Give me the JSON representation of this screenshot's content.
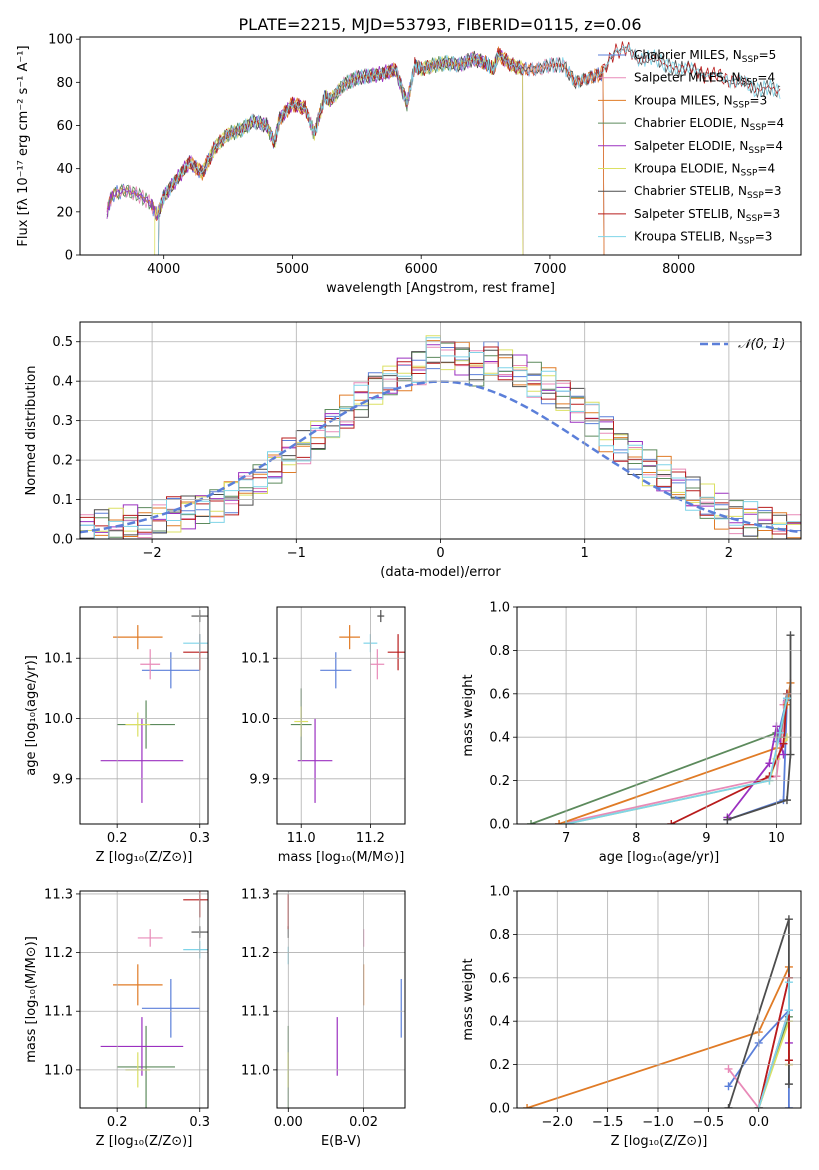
{
  "figure": {
    "title": "PLATE=2215, MJD=53793, FIBERID=0115, z=0.06"
  },
  "chart_data": [
    {
      "id": "spectrum",
      "type": "line",
      "xlabel": "wavelength [Angstrom, rest frame]",
      "ylabel": "Flux [fλ 10⁻¹⁷ erg cm⁻² s⁻¹ A⁻¹]",
      "xlim": [
        3350,
        8950
      ],
      "ylim": [
        0,
        101
      ],
      "xticks": [
        4000,
        5000,
        6000,
        7000,
        8000
      ],
      "yticks": [
        0,
        20,
        40,
        60,
        80,
        100
      ],
      "legend": "top-right",
      "grid": false,
      "x": [
        3560,
        3600,
        3700,
        3800,
        3900,
        3950,
        4000,
        4100,
        4200,
        4300,
        4400,
        4500,
        4600,
        4700,
        4800,
        4860,
        4900,
        5000,
        5100,
        5170,
        5250,
        5300,
        5400,
        5500,
        5600,
        5700,
        5800,
        5890,
        5950,
        6000,
        6100,
        6200,
        6300,
        6400,
        6500,
        6560,
        6600,
        6700,
        6800,
        6900,
        7000,
        7100,
        7200,
        7300,
        7400,
        7500,
        7600,
        7700,
        7800,
        7900,
        8000,
        8100,
        8200,
        8300,
        8400,
        8500,
        8600,
        8700,
        8800
      ],
      "y": [
        20,
        28,
        30,
        28,
        24,
        18,
        27,
        35,
        43,
        38,
        50,
        56,
        58,
        62,
        60,
        52,
        63,
        70,
        68,
        56,
        73,
        72,
        79,
        82,
        83,
        84,
        86,
        70,
        88,
        86,
        88,
        89,
        88,
        91,
        89,
        86,
        93,
        88,
        86,
        86,
        88,
        88,
        80,
        82,
        84,
        94,
        96,
        90,
        92,
        88,
        86,
        87,
        83,
        84,
        80,
        81,
        76,
        78,
        75
      ],
      "series": [
        {
          "name": "Chabrier MILES, N_SSP=5",
          "label": "Chabrier MILES, N",
          "sub": "SSP",
          "suffix": "=5",
          "color": "#5b7fd9",
          "xmin": 3560,
          "xmax": 7420
        },
        {
          "name": "Salpeter MILES, N_SSP=4",
          "label": "Salpeter MILES, N",
          "sub": "SSP",
          "suffix": "=4",
          "color": "#e88ab8",
          "xmin": 3560,
          "xmax": 7420
        },
        {
          "name": "Kroupa MILES, N_SSP=3",
          "label": "Kroupa MILES, N",
          "sub": "SSP",
          "suffix": "=3",
          "color": "#e07b26",
          "xmin": 3560,
          "xmax": 7420
        },
        {
          "name": "Chabrier ELODIE, N_SSP=4",
          "label": "Chabrier ELODIE, N",
          "sub": "SSP",
          "suffix": "=4",
          "color": "#5c8a5c",
          "xmin": 3560,
          "xmax": 6790
        },
        {
          "name": "Salpeter ELODIE, N_SSP=4",
          "label": "Salpeter ELODIE, N",
          "sub": "SSP",
          "suffix": "=4",
          "color": "#9b30c0",
          "xmin": 3560,
          "xmax": 6790
        },
        {
          "name": "Kroupa ELODIE, N_SSP=4",
          "label": "Kroupa ELODIE, N",
          "sub": "SSP",
          "suffix": "=4",
          "color": "#dbe063",
          "xmin": 3930,
          "xmax": 6790
        },
        {
          "name": "Chabrier STELIB, N_SSP=3",
          "label": "Chabrier STELIB, N",
          "sub": "SSP",
          "suffix": "=3",
          "color": "#4d4d4d",
          "xmin": 3960,
          "xmax": 8800
        },
        {
          "name": "Salpeter STELIB, N_SSP=3",
          "label": "Salpeter STELIB, N",
          "sub": "SSP",
          "suffix": "=3",
          "color": "#b81c1c",
          "xmin": 3960,
          "xmax": 8800
        },
        {
          "name": "Kroupa STELIB, N_SSP=3",
          "label": "Kroupa STELIB, N",
          "sub": "SSP",
          "suffix": "=3",
          "color": "#7fd4e8",
          "xmin": 3960,
          "xmax": 8800
        }
      ]
    },
    {
      "id": "residuals",
      "type": "bar",
      "xlabel": "(data-model)/error",
      "ylabel": "Normed distribution",
      "xlim": [
        -2.5,
        2.5
      ],
      "ylim": [
        0,
        0.55
      ],
      "xticks": [
        -2,
        -1,
        0,
        1,
        2
      ],
      "xticklabels": [
        "−2",
        "−1",
        "0",
        "1",
        "2"
      ],
      "yticks": [
        0,
        0.1,
        0.2,
        0.3,
        0.4,
        0.5
      ],
      "yticklabels": [
        "0.0",
        "0.1",
        "0.2",
        "0.3",
        "0.4",
        "0.5"
      ],
      "grid": true,
      "legend": "top-right",
      "reference": {
        "name": "N(0,1)",
        "label": "𝒩(0, 1)",
        "color": "#5b7fd9",
        "style": "dashed"
      },
      "bin_width": 0.1,
      "bin_start": -2.5,
      "histogram_values": [
        0.02,
        0.03,
        0.03,
        0.04,
        0.04,
        0.05,
        0.06,
        0.07,
        0.08,
        0.09,
        0.11,
        0.13,
        0.15,
        0.18,
        0.21,
        0.23,
        0.26,
        0.29,
        0.32,
        0.35,
        0.38,
        0.4,
        0.42,
        0.44,
        0.48,
        0.47,
        0.46,
        0.43,
        0.45,
        0.44,
        0.42,
        0.4,
        0.39,
        0.36,
        0.34,
        0.31,
        0.27,
        0.24,
        0.21,
        0.18,
        0.16,
        0.13,
        0.11,
        0.09,
        0.07,
        0.06,
        0.05,
        0.04,
        0.03,
        0.02
      ],
      "series_colors": [
        "#5b7fd9",
        "#e88ab8",
        "#e07b26",
        "#5c8a5c",
        "#9b30c0",
        "#dbe063",
        "#4d4d4d",
        "#b81c1c",
        "#7fd4e8"
      ]
    },
    {
      "id": "age-vs-Z",
      "type": "scatter",
      "xlabel": "Z [log₁₀(Z/Z⊙)]",
      "ylabel": "age  [log₁₀(age/yr)]",
      "xlim": [
        0.155,
        0.31
      ],
      "ylim": [
        9.825,
        10.185
      ],
      "xticks": [
        0.2,
        0.3
      ],
      "xticklabels": [
        "0.2",
        "0.3"
      ],
      "yticks": [
        9.9,
        10.0,
        10.1
      ],
      "yticklabels": [
        "9.9",
        "10.0",
        "10.1"
      ],
      "grid": true,
      "points": [
        {
          "x": 0.265,
          "xerr": 0.035,
          "y": 10.08,
          "yerr": 0.03,
          "color": "#5b7fd9"
        },
        {
          "x": 0.24,
          "xerr": 0.012,
          "y": 10.09,
          "yerr": 0.025,
          "color": "#e88ab8"
        },
        {
          "x": 0.225,
          "xerr": 0.03,
          "y": 10.135,
          "yerr": 0.02,
          "color": "#e07b26"
        },
        {
          "x": 0.235,
          "xerr": 0.035,
          "y": 9.99,
          "yerr": 0.04,
          "color": "#5c8a5c"
        },
        {
          "x": 0.23,
          "xerr": 0.05,
          "y": 9.93,
          "yerr": 0.07,
          "color": "#9b30c0"
        },
        {
          "x": 0.225,
          "xerr": 0.015,
          "y": 9.99,
          "yerr": 0.02,
          "color": "#dbe063"
        },
        {
          "x": 0.3,
          "xerr": 0.01,
          "y": 10.17,
          "yerr": 0.01,
          "color": "#4d4d4d"
        },
        {
          "x": 0.3,
          "xerr": 0.02,
          "y": 10.11,
          "yerr": 0.03,
          "color": "#b81c1c"
        },
        {
          "x": 0.3,
          "xerr": 0.02,
          "y": 10.125,
          "yerr": 0.015,
          "color": "#7fd4e8"
        }
      ]
    },
    {
      "id": "age-vs-mass",
      "type": "scatter",
      "xlabel": "mass [log₁₀(M/M⊙)]",
      "ylabel": "",
      "xlim": [
        10.93,
        11.3
      ],
      "ylim": [
        9.825,
        10.185
      ],
      "xticks": [
        11.0,
        11.2
      ],
      "xticklabels": [
        "11.0",
        "11.2"
      ],
      "yticks": [
        9.9,
        10.0,
        10.1
      ],
      "yticklabels": [
        "9.9",
        "10.0",
        "10.1"
      ],
      "grid": true,
      "points": [
        {
          "x": 11.1,
          "xerr": 0.045,
          "y": 10.08,
          "yerr": 0.03,
          "color": "#5b7fd9"
        },
        {
          "x": 11.22,
          "xerr": 0.02,
          "y": 10.09,
          "yerr": 0.025,
          "color": "#e88ab8"
        },
        {
          "x": 11.14,
          "xerr": 0.03,
          "y": 10.135,
          "yerr": 0.02,
          "color": "#e07b26"
        },
        {
          "x": 11.0,
          "xerr": 0.03,
          "y": 9.99,
          "yerr": 0.06,
          "color": "#5c8a5c"
        },
        {
          "x": 11.04,
          "xerr": 0.05,
          "y": 9.93,
          "yerr": 0.07,
          "color": "#9b30c0"
        },
        {
          "x": 11.0,
          "xerr": 0.02,
          "y": 9.995,
          "yerr": 0.025,
          "color": "#dbe063"
        },
        {
          "x": 11.23,
          "xerr": 0.01,
          "y": 10.17,
          "yerr": 0.01,
          "color": "#4d4d4d"
        },
        {
          "x": 11.28,
          "xerr": 0.03,
          "y": 10.11,
          "yerr": 0.03,
          "color": "#b81c1c"
        },
        {
          "x": 11.2,
          "xerr": 0.02,
          "y": 10.125,
          "yerr": 0.015,
          "color": "#7fd4e8"
        }
      ]
    },
    {
      "id": "weight-vs-age",
      "type": "line",
      "xlabel": "age  [log₁₀(age/yr)]",
      "ylabel": "mass weight",
      "xlim": [
        6.3,
        10.35
      ],
      "ylim": [
        0,
        1
      ],
      "xticks": [
        7,
        8,
        9,
        10
      ],
      "xticklabels": [
        "7",
        "8",
        "9",
        "10"
      ],
      "yticks": [
        0,
        0.2,
        0.4,
        0.6,
        0.8,
        1.0
      ],
      "yticklabels": [
        "0.0",
        "0.2",
        "0.4",
        "0.6",
        "0.8",
        "1.0"
      ],
      "grid": true,
      "series": [
        {
          "color": "#5b7fd9",
          "x": [
            9.3,
            10.1,
            10.15,
            10.0,
            10.15
          ],
          "y": [
            0.02,
            0.11,
            0.57,
            0.38,
            0.58
          ]
        },
        {
          "color": "#e88ab8",
          "x": [
            6.9,
            10.0,
            10.15,
            10.1
          ],
          "y": [
            0.0,
            0.22,
            0.6,
            0.55
          ]
        },
        {
          "color": "#e07b26",
          "x": [
            6.9,
            10.0,
            10.15,
            10.2
          ],
          "y": [
            0.0,
            0.35,
            0.55,
            0.65
          ]
        },
        {
          "color": "#5c8a5c",
          "x": [
            6.5,
            10.0,
            10.05,
            10.15
          ],
          "y": [
            0.0,
            0.42,
            0.4,
            0.6
          ]
        },
        {
          "color": "#9b30c0",
          "x": [
            9.3,
            9.9,
            10.0,
            10.1
          ],
          "y": [
            0.03,
            0.28,
            0.45,
            0.32
          ]
        },
        {
          "color": "#dbe063",
          "x": [
            7.0,
            9.9,
            10.0,
            10.15
          ],
          "y": [
            0.0,
            0.2,
            0.3,
            0.4
          ]
        },
        {
          "color": "#4d4d4d",
          "x": [
            9.3,
            10.15,
            10.2,
            10.2
          ],
          "y": [
            0.02,
            0.11,
            0.32,
            0.87
          ]
        },
        {
          "color": "#b81c1c",
          "x": [
            8.5,
            9.9,
            10.1,
            10.15
          ],
          "y": [
            0.0,
            0.22,
            0.37,
            0.6
          ]
        },
        {
          "color": "#7fd4e8",
          "x": [
            7.0,
            9.9,
            10.05,
            10.15
          ],
          "y": [
            0.0,
            0.2,
            0.42,
            0.58
          ]
        }
      ]
    },
    {
      "id": "mass-vs-Z",
      "type": "scatter",
      "xlabel": "Z [log₁₀(Z/Z⊙)]",
      "ylabel": "mass [log₁₀(M/M⊙)]",
      "xlim": [
        0.155,
        0.31
      ],
      "ylim": [
        10.935,
        11.305
      ],
      "xticks": [
        0.2,
        0.3
      ],
      "xticklabels": [
        "0.2",
        "0.3"
      ],
      "yticks": [
        11.0,
        11.1,
        11.2,
        11.3
      ],
      "yticklabels": [
        "11.0",
        "11.1",
        "11.2",
        "11.3"
      ],
      "grid": true,
      "points": [
        {
          "x": 0.265,
          "xerr": 0.035,
          "y": 11.105,
          "yerr": 0.05,
          "color": "#5b7fd9"
        },
        {
          "x": 0.24,
          "xerr": 0.015,
          "y": 11.225,
          "yerr": 0.015,
          "color": "#e88ab8"
        },
        {
          "x": 0.225,
          "xerr": 0.03,
          "y": 11.145,
          "yerr": 0.035,
          "color": "#e07b26"
        },
        {
          "x": 0.235,
          "xerr": 0.035,
          "y": 11.005,
          "yerr": 0.07,
          "color": "#5c8a5c"
        },
        {
          "x": 0.23,
          "xerr": 0.05,
          "y": 11.04,
          "yerr": 0.05,
          "color": "#9b30c0"
        },
        {
          "x": 0.225,
          "xerr": 0.015,
          "y": 11.0,
          "yerr": 0.03,
          "color": "#dbe063"
        },
        {
          "x": 0.3,
          "xerr": 0.01,
          "y": 11.235,
          "yerr": 0.01,
          "color": "#4d4d4d"
        },
        {
          "x": 0.3,
          "xerr": 0.02,
          "y": 11.29,
          "yerr": 0.03,
          "color": "#b81c1c"
        },
        {
          "x": 0.3,
          "xerr": 0.02,
          "y": 11.205,
          "yerr": 0.015,
          "color": "#7fd4e8"
        }
      ]
    },
    {
      "id": "mass-vs-ebv",
      "type": "scatter",
      "xlabel": "E(B-V)",
      "ylabel": "",
      "xlim": [
        -0.003,
        0.031
      ],
      "ylim": [
        10.935,
        11.305
      ],
      "xticks": [
        0.0,
        0.02
      ],
      "xticklabels": [
        "0.00",
        "0.02"
      ],
      "yticks": [
        11.0,
        11.1,
        11.2,
        11.3
      ],
      "yticklabels": [
        "11.0",
        "11.1",
        "11.2",
        "11.3"
      ],
      "grid": true,
      "points": [
        {
          "x": 0.03,
          "xerr": 0,
          "y": 11.105,
          "yerr": 0.05,
          "color": "#5b7fd9"
        },
        {
          "x": 0.02,
          "xerr": 0,
          "y": 11.225,
          "yerr": 0.015,
          "color": "#e88ab8"
        },
        {
          "x": 0.02,
          "xerr": 0,
          "y": 11.145,
          "yerr": 0.035,
          "color": "#e07b26"
        },
        {
          "x": 0.0,
          "xerr": 0,
          "y": 11.005,
          "yerr": 0.07,
          "color": "#5c8a5c"
        },
        {
          "x": 0.013,
          "xerr": 0,
          "y": 11.04,
          "yerr": 0.05,
          "color": "#9b30c0"
        },
        {
          "x": 0.0,
          "xerr": 0,
          "y": 11.0,
          "yerr": 0.03,
          "color": "#dbe063"
        },
        {
          "x": 0.0,
          "xerr": 0,
          "y": 11.235,
          "yerr": 0.01,
          "color": "#4d4d4d"
        },
        {
          "x": 0.0,
          "xerr": 0,
          "y": 11.27,
          "yerr": 0.03,
          "color": "#b81c1c"
        },
        {
          "x": 0.0,
          "xerr": 0,
          "y": 11.195,
          "yerr": 0.015,
          "color": "#7fd4e8"
        }
      ]
    },
    {
      "id": "weight-vs-Z",
      "type": "line",
      "xlabel": "Z [log₁₀(Z/Z⊙)]",
      "ylabel": "mass weight",
      "xlim": [
        -2.4,
        0.42
      ],
      "ylim": [
        0,
        1
      ],
      "xticks": [
        -2.0,
        -1.5,
        -1.0,
        -0.5,
        0.0
      ],
      "xticklabels": [
        "−2.0",
        "−1.5",
        "−1.0",
        "−0.5",
        "0.0"
      ],
      "yticks": [
        0,
        0.2,
        0.4,
        0.6,
        0.8,
        1.0
      ],
      "yticklabels": [
        "0.0",
        "0.2",
        "0.4",
        "0.6",
        "0.8",
        "1.0"
      ],
      "grid": true,
      "series": [
        {
          "color": "#5b7fd9",
          "x": [
            -0.3,
            0.0,
            0.3,
            0.3
          ],
          "y": [
            0.1,
            0.3,
            0.45,
            0.0
          ]
        },
        {
          "color": "#e88ab8",
          "x": [
            -0.3,
            0.0,
            0.3,
            0.3
          ],
          "y": [
            0.18,
            0.0,
            0.6,
            0.22
          ]
        },
        {
          "color": "#e07b26",
          "x": [
            -2.3,
            0.0,
            0.3,
            0.3
          ],
          "y": [
            0.0,
            0.35,
            0.65,
            0.2
          ]
        },
        {
          "color": "#5c8a5c",
          "x": [
            0.0,
            0.3,
            0.3
          ],
          "y": [
            0.0,
            0.42,
            0.6
          ]
        },
        {
          "color": "#9b30c0",
          "x": [
            0.0,
            0.3,
            0.3
          ],
          "y": [
            0.0,
            0.45,
            0.3
          ]
        },
        {
          "color": "#dbe063",
          "x": [
            0.0,
            0.3,
            0.3
          ],
          "y": [
            0.0,
            0.4,
            0.2
          ]
        },
        {
          "color": "#4d4d4d",
          "x": [
            -0.3,
            0.3,
            0.3
          ],
          "y": [
            0.0,
            0.87,
            0.11
          ]
        },
        {
          "color": "#b81c1c",
          "x": [
            0.0,
            0.3,
            0.3
          ],
          "y": [
            0.0,
            0.6,
            0.22
          ]
        },
        {
          "color": "#7fd4e8",
          "x": [
            0.0,
            0.3,
            0.3
          ],
          "y": [
            0.0,
            0.45,
            0.58
          ]
        }
      ]
    }
  ]
}
